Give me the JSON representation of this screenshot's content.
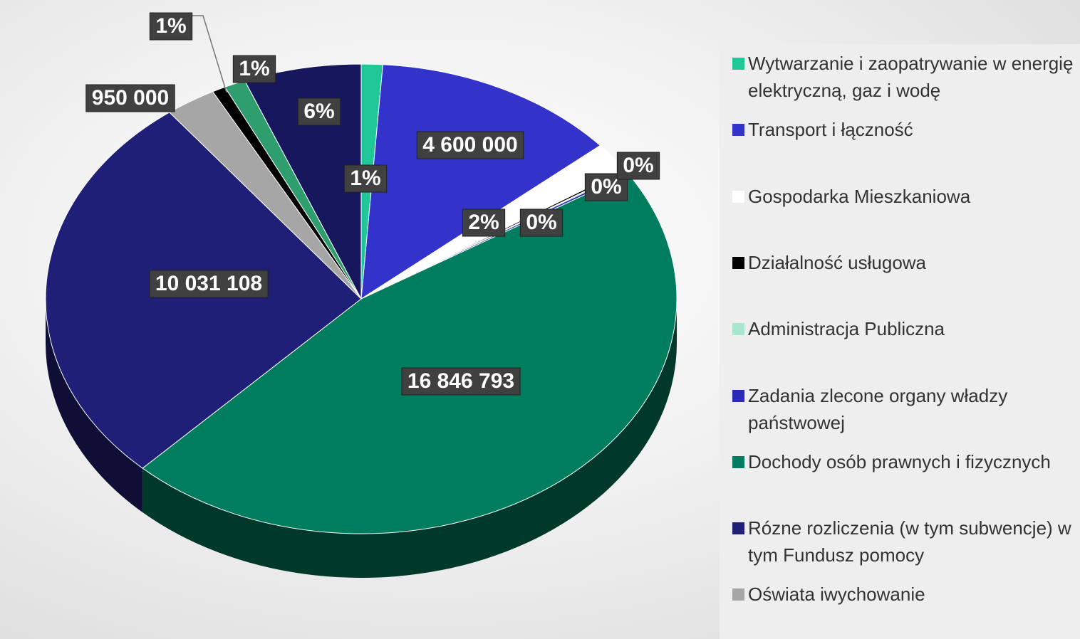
{
  "chart_data": {
    "type": "pie",
    "categories": [
      "Wytwarzanie i zaopatrywanie w energię elektryczną, gaz i wodę",
      "Transport i łączność",
      "Gospodarka Mieszkaniowa",
      "Działalność usługowa",
      "Administracja Publiczna",
      "Zadania zlecone organy władzy państwowej",
      "Dochody osób prawnych i fizycznych",
      "Rózne rozliczenia (w tym subwencje) w tym Fundusz pomocy",
      "Oświata iwychowanie",
      null,
      null,
      null
    ],
    "values": [
      400000,
      4600000,
      750000,
      50000,
      30000,
      60000,
      16846793,
      10031108,
      950000,
      250000,
      400000,
      2200000
    ],
    "value_labels": [
      "1%",
      "4 600 000",
      "2%",
      "0%",
      "0%",
      "0%",
      "16 846 793",
      "10 031 108",
      "950 000",
      "1%",
      "1%",
      "6%"
    ],
    "colors": [
      "#1fc896",
      "#3333cc",
      "#ffffff",
      "#000000",
      "#a8e6cf",
      "#2b2bb5",
      "#007d5e",
      "#1f1f78",
      "#a6a6a6",
      "#000000",
      "#2e9e6e",
      "#17175e"
    ]
  }
}
